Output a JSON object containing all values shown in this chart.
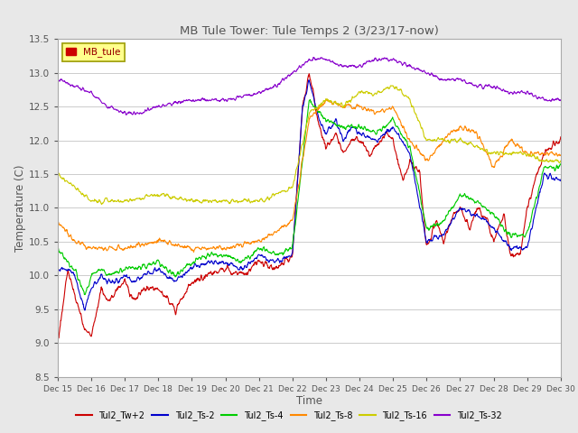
{
  "title": "MB Tule Tower: Tule Temps 2 (3/23/17-now)",
  "xlabel": "Time",
  "ylabel": "Temperature (C)",
  "ylim": [
    8.5,
    13.5
  ],
  "yticks": [
    8.5,
    9.0,
    9.5,
    10.0,
    10.5,
    11.0,
    11.5,
    12.0,
    12.5,
    13.0,
    13.5
  ],
  "legend_label": "MB_tule",
  "series_labels": [
    "Tul2_Tw+2",
    "Tul2_Ts-2",
    "Tul2_Ts-4",
    "Tul2_Ts-8",
    "Tul2_Ts-16",
    "Tul2_Ts-32"
  ],
  "series_colors": [
    "#cc0000",
    "#0000cc",
    "#00cc00",
    "#ff8800",
    "#cccc00",
    "#8800cc"
  ],
  "background_color": "#e8e8e8",
  "plot_bg_color": "#ffffff",
  "title_color": "#555555",
  "figsize": [
    6.4,
    4.8
  ],
  "dpi": 100
}
